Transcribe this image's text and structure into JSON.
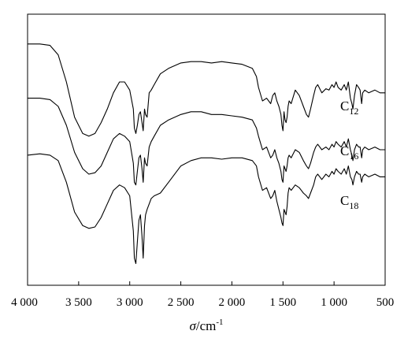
{
  "chart_data": {
    "type": "line",
    "title": "",
    "xlabel": "σ/cm⁻¹",
    "xlabel_parts": {
      "symbol": "σ",
      "unit": "/cm",
      "exponent": "-1"
    },
    "ylabel": "",
    "xlim": [
      4000,
      500
    ],
    "x_reversed": true,
    "y_ticks": false,
    "grid": false,
    "legend": "inline labels to the right of each curve",
    "x_ticks": [
      4000,
      3500,
      3000,
      2500,
      2000,
      1500,
      1000,
      500
    ],
    "x_tick_labels": [
      "4 000",
      "3 500",
      "3 000",
      "2 500",
      "2 000",
      "1 500",
      "1 000",
      "500"
    ],
    "series": [
      {
        "name": "C12",
        "name_base": "C",
        "name_sub": "12",
        "x": [
          4000,
          3880,
          3780,
          3700,
          3620,
          3540,
          3460,
          3400,
          3340,
          3280,
          3220,
          3160,
          3100,
          3050,
          3000,
          2965,
          2955,
          2940,
          2925,
          2910,
          2895,
          2880,
          2868,
          2855,
          2845,
          2830,
          2810,
          2790,
          2760,
          2700,
          2620,
          2500,
          2400,
          2300,
          2200,
          2100,
          2000,
          1900,
          1800,
          1760,
          1740,
          1700,
          1660,
          1620,
          1600,
          1580,
          1560,
          1540,
          1520,
          1510,
          1500,
          1490,
          1480,
          1470,
          1460,
          1450,
          1440,
          1420,
          1380,
          1340,
          1300,
          1270,
          1250,
          1230,
          1200,
          1180,
          1160,
          1120,
          1080,
          1050,
          1020,
          1000,
          980,
          960,
          930,
          900,
          880,
          860,
          840,
          825,
          815,
          800,
          780,
          760,
          745,
          730,
          720,
          700,
          660,
          600,
          550,
          500
        ],
        "y": [
          89,
          89,
          88.5,
          85,
          75,
          62,
          56,
          55,
          56,
          60,
          65,
          71,
          75,
          75,
          72,
          65,
          58,
          56,
          59,
          63,
          64,
          60,
          57,
          65,
          63,
          62,
          71,
          72,
          74,
          78,
          80,
          82,
          82.5,
          82.5,
          82,
          82.5,
          82,
          81.5,
          80,
          77,
          73,
          68,
          69,
          67,
          70,
          71,
          68,
          66,
          63,
          59,
          57,
          64,
          61,
          60,
          62,
          66,
          68,
          67,
          72,
          70,
          66,
          63,
          62,
          65,
          70,
          73,
          74,
          71,
          72.5,
          72,
          74,
          73,
          75,
          73,
          72,
          74,
          72,
          75,
          69,
          67,
          65,
          70,
          74,
          73,
          72,
          67,
          71,
          72,
          71,
          72,
          71,
          71
        ]
      },
      {
        "name": "C16",
        "name_base": "C",
        "name_sub": "16",
        "x": [
          4000,
          3880,
          3780,
          3700,
          3620,
          3540,
          3460,
          3400,
          3340,
          3280,
          3220,
          3160,
          3100,
          3050,
          3000,
          2965,
          2955,
          2940,
          2925,
          2910,
          2895,
          2880,
          2868,
          2855,
          2845,
          2830,
          2810,
          2790,
          2760,
          2700,
          2620,
          2500,
          2400,
          2300,
          2200,
          2100,
          2000,
          1900,
          1800,
          1760,
          1740,
          1700,
          1660,
          1620,
          1600,
          1580,
          1560,
          1540,
          1520,
          1510,
          1500,
          1490,
          1480,
          1470,
          1460,
          1450,
          1440,
          1420,
          1380,
          1340,
          1300,
          1270,
          1250,
          1230,
          1200,
          1180,
          1160,
          1120,
          1080,
          1050,
          1020,
          1000,
          980,
          960,
          930,
          900,
          880,
          860,
          840,
          825,
          815,
          800,
          780,
          760,
          745,
          730,
          720,
          700,
          660,
          600,
          550,
          500
        ],
        "y": [
          69,
          69,
          68.5,
          66,
          59,
          49,
          43,
          41,
          41.5,
          44,
          49,
          54,
          56,
          55,
          53,
          45,
          38,
          37,
          42,
          47,
          48,
          43,
          38,
          47,
          45,
          44,
          51,
          53,
          55,
          59,
          61,
          63,
          64,
          64,
          63,
          63,
          62.5,
          62,
          61,
          58,
          55,
          50,
          51,
          47,
          48,
          50,
          47,
          45,
          42,
          39,
          38,
          44,
          43,
          42,
          44,
          47,
          48,
          47,
          50,
          49,
          46,
          44,
          43,
          45,
          49,
          51,
          52,
          50,
          51,
          50,
          52,
          51,
          53,
          52,
          51,
          53,
          51,
          54,
          50,
          48,
          46,
          50,
          52,
          51,
          51,
          47,
          50,
          51,
          50,
          51,
          50,
          50
        ]
      },
      {
        "name": "C18",
        "name_base": "C",
        "name_sub": "18",
        "x": [
          4000,
          3880,
          3780,
          3700,
          3620,
          3540,
          3460,
          3400,
          3340,
          3280,
          3220,
          3160,
          3100,
          3050,
          3000,
          2965,
          2955,
          2940,
          2925,
          2910,
          2895,
          2880,
          2868,
          2855,
          2845,
          2830,
          2810,
          2790,
          2760,
          2700,
          2620,
          2500,
          2400,
          2300,
          2200,
          2100,
          2000,
          1900,
          1800,
          1760,
          1740,
          1700,
          1660,
          1620,
          1600,
          1580,
          1560,
          1540,
          1520,
          1510,
          1500,
          1490,
          1480,
          1470,
          1460,
          1450,
          1440,
          1420,
          1380,
          1340,
          1300,
          1270,
          1250,
          1230,
          1200,
          1180,
          1160,
          1120,
          1080,
          1050,
          1020,
          1000,
          980,
          960,
          930,
          900,
          880,
          860,
          840,
          825,
          815,
          800,
          780,
          760,
          745,
          730,
          720,
          700,
          660,
          600,
          550,
          500
        ],
        "y": [
          48,
          48.5,
          48,
          46,
          38,
          27,
          22,
          21,
          21.5,
          25,
          30,
          35,
          37,
          36,
          33,
          20,
          10,
          8,
          16,
          24,
          26,
          18,
          10,
          22,
          26,
          28,
          30,
          32,
          33,
          34,
          38,
          44,
          46,
          47,
          47,
          46.5,
          47,
          47,
          46,
          44,
          40,
          35,
          36,
          32,
          33,
          35,
          31,
          28,
          25,
          23,
          22,
          28,
          27,
          26,
          29,
          34,
          36,
          35,
          37,
          36,
          34,
          33,
          32,
          34,
          37,
          40,
          41,
          39,
          41,
          40,
          42,
          41,
          43,
          42,
          41,
          43,
          41,
          44,
          40,
          39,
          37,
          40,
          42,
          41,
          41,
          38,
          40,
          41,
          40,
          41,
          40,
          40
        ]
      }
    ]
  }
}
